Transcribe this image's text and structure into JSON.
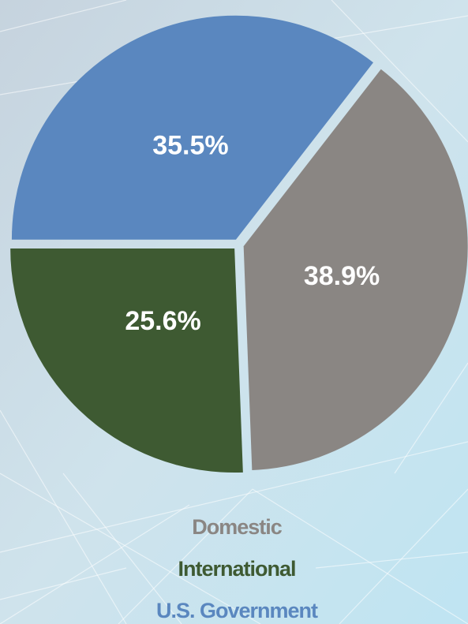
{
  "chart_data": {
    "type": "pie",
    "categories": [
      "Domestic",
      "International",
      "U.S. Government"
    ],
    "values": [
      38.9,
      25.6,
      35.5
    ],
    "value_labels": [
      "38.9%",
      "25.6%",
      "35.5%"
    ],
    "colors": [
      "#8a8683",
      "#3e5a32",
      "#5a87bf"
    ],
    "legend": "bottom"
  }
}
